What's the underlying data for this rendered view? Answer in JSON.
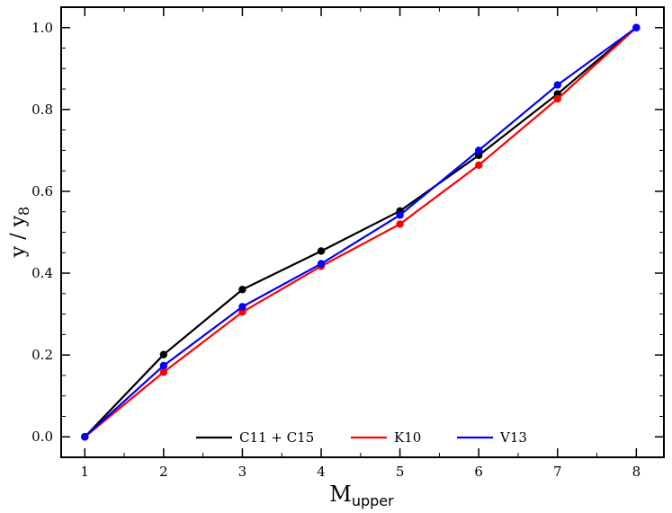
{
  "chart_data": {
    "type": "line",
    "x": [
      1,
      2,
      3,
      4,
      5,
      6,
      7,
      8
    ],
    "xlabel": {
      "main": "M",
      "sub": "upper"
    },
    "ylabel": {
      "main": "y / y",
      "sub": "8"
    },
    "xlim": [
      0.7,
      8.35
    ],
    "ylim": [
      -0.05,
      1.05
    ],
    "xticks": [
      1,
      2,
      3,
      4,
      5,
      6,
      7,
      8
    ],
    "xtick_labels": [
      "1",
      "2",
      "3",
      "4",
      "5",
      "6",
      "7",
      "8"
    ],
    "yticks": [
      0.0,
      0.2,
      0.4,
      0.6,
      0.8,
      1.0
    ],
    "ytick_labels": [
      "0.0",
      "0.2",
      "0.4",
      "0.6",
      "0.8",
      "1.0"
    ],
    "grid": false,
    "legend_position": "bottom-center",
    "series": [
      {
        "name": "C11 + C15",
        "color": "#000000",
        "values": [
          0.0,
          0.201,
          0.36,
          0.454,
          0.552,
          0.688,
          0.838,
          1.0
        ]
      },
      {
        "name": "K10",
        "color": "#ff0000",
        "values": [
          0.0,
          0.158,
          0.305,
          0.417,
          0.52,
          0.664,
          0.826,
          1.0
        ]
      },
      {
        "name": "V13",
        "color": "#0000ff",
        "values": [
          0.0,
          0.174,
          0.318,
          0.423,
          0.542,
          0.7,
          0.86,
          1.0
        ]
      }
    ]
  }
}
